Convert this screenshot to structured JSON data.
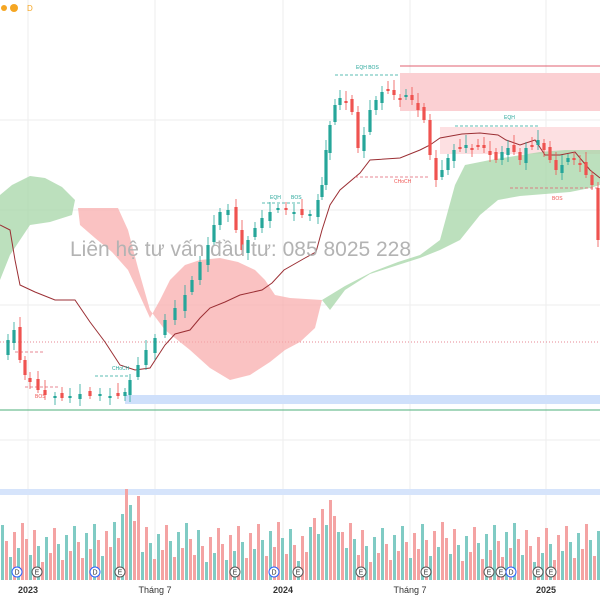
{
  "chart_data": {
    "type": "candlestick",
    "watermark": "Liên hệ tư vấn đầu tư:  085 8025 228",
    "top_badge": "D",
    "x_ticks": [
      "2023",
      "Tháng 7",
      "2024",
      "Tháng 7",
      "2025"
    ],
    "annotations": [
      "BOS",
      "CHoCH",
      "EQH",
      "BOS",
      "EQH BOS",
      "CHoCH",
      "EQH",
      "BOS"
    ],
    "event_markers": [
      "D",
      "E",
      "D",
      "E",
      "E",
      "D",
      "E",
      "E",
      "E",
      "E",
      "E",
      "D",
      "E",
      "E"
    ],
    "colors": {
      "up": "#26a69a",
      "down": "#ef5350",
      "baseline": "#9b2f34",
      "cloud_bull": "#a5d6a7",
      "cloud_bear": "#f8a8a8",
      "supply_zone": "#fbd0d3",
      "demand_zone": "#cfe0fb",
      "badge": "#f5a623"
    }
  }
}
